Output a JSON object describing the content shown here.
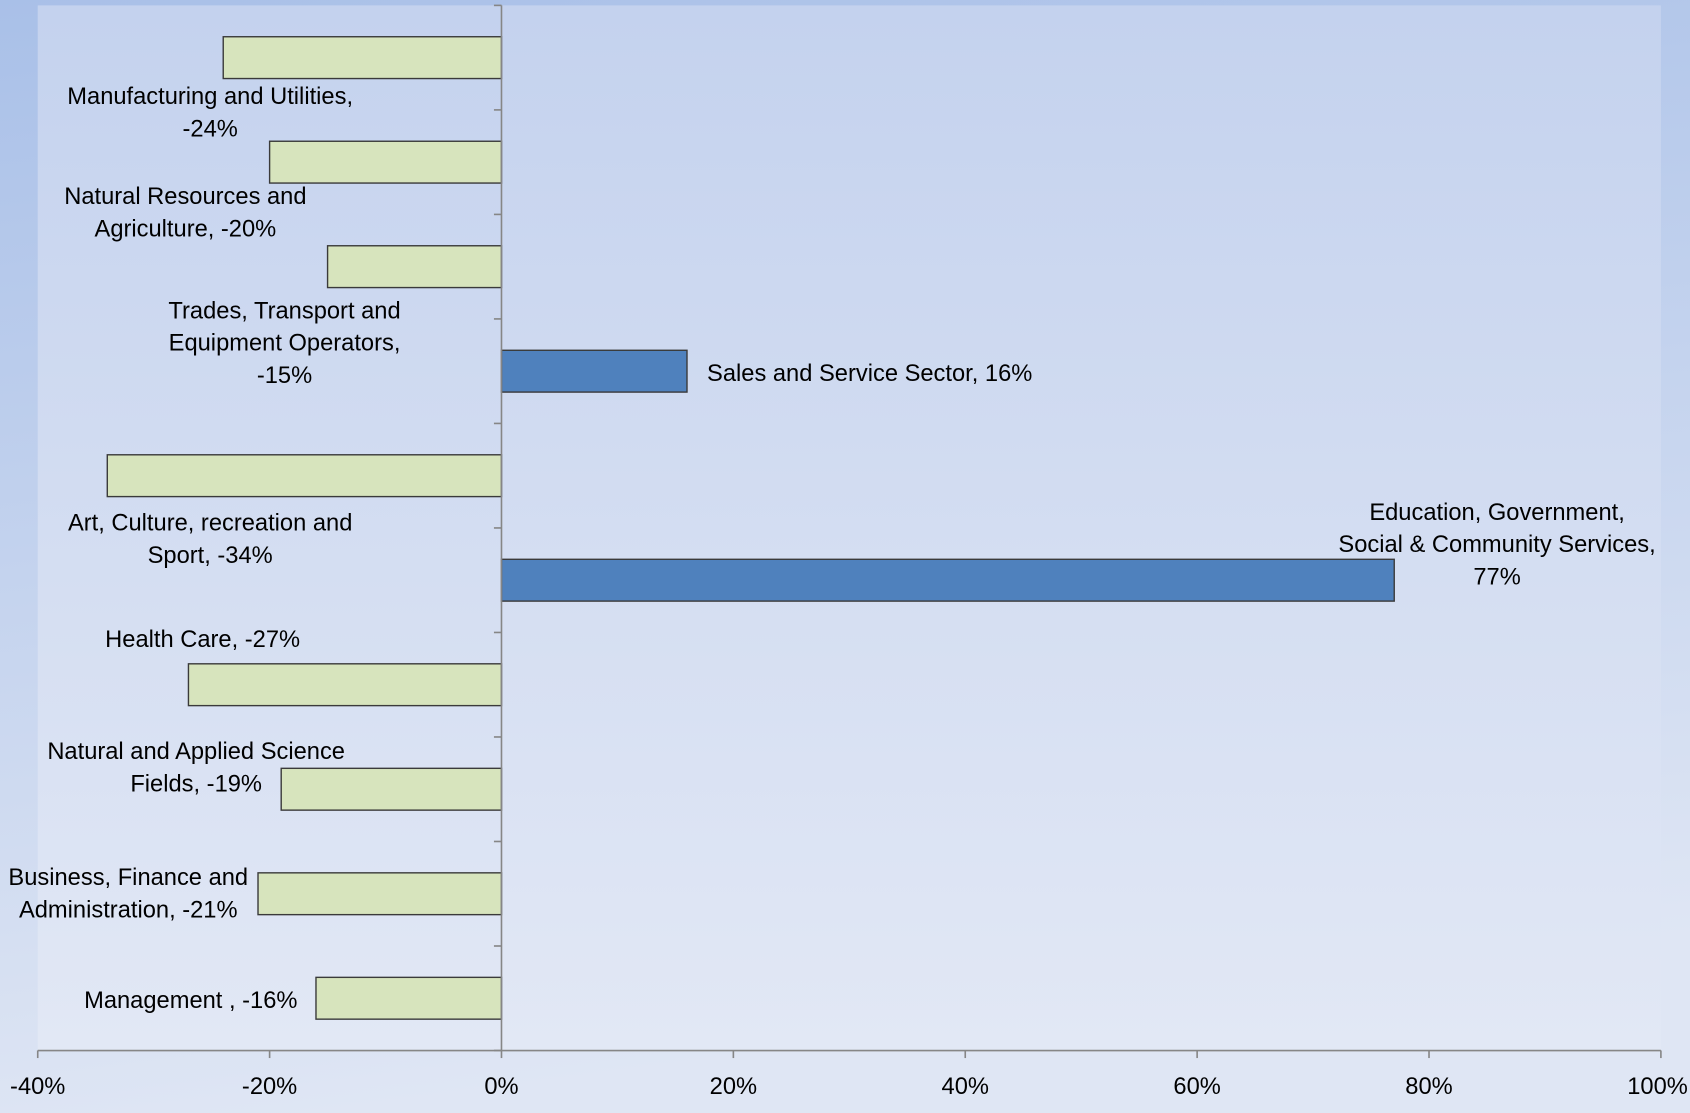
{
  "chart_data": {
    "type": "bar",
    "orientation": "horizontal",
    "data_labels": [
      "Manufacturing and Utilities, -24%",
      "Natural Resources and Agriculture, -20%",
      "Trades, Transport and Equipment Operators, -15%",
      "Sales and Service Sector, 16%",
      "Art, Culture, recreation and Sport, -34%",
      "Education, Government, Social & Community Services, 77%",
      "Health Care, -27%",
      "Natural and Applied Science Fields, -19%",
      "Business, Finance and Administration, -21%",
      "Management , -16%"
    ],
    "values": [
      -24,
      -20,
      -15,
      16,
      -34,
      77,
      -27,
      -19,
      -21,
      -16
    ],
    "xlim": [
      -40,
      100
    ],
    "x_tick_labels": [
      "-40%",
      "-20%",
      "0%",
      "20%",
      "40%",
      "60%",
      "80%",
      "100%"
    ],
    "grid": false,
    "legend": false
  },
  "colors": {
    "page_background_top": "#a9c0e8",
    "page_background_bottom": "#dfe6f4",
    "plot_background_top": "#c4d2ee",
    "plot_background_bottom": "#e2e8f5",
    "positive_bar": "#4f81bd",
    "negative_bar": "#d7e4bd",
    "bar_outline": "#3a3a3a",
    "axis": "#868686",
    "text": "#000000"
  }
}
